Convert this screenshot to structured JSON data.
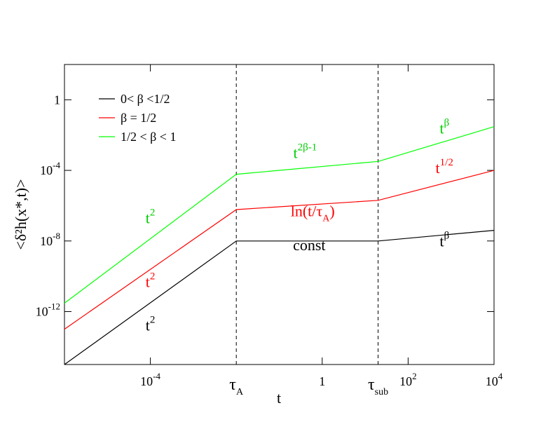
{
  "chart_data": {
    "type": "line",
    "title": "",
    "xlabel": "t",
    "ylabel": "<δ²h(x*,t)>",
    "x_scale": "log",
    "y_scale": "log",
    "xlim": [
      1e-06,
      10000.0
    ],
    "ylim": [
      1e-15,
      100.0
    ],
    "x_ticks": [
      {
        "value": 0.0001,
        "base": "10",
        "exp": "-4"
      },
      {
        "value": 1,
        "base": "1",
        "exp": ""
      },
      {
        "value": 100.0,
        "base": "10",
        "exp": "2"
      },
      {
        "value": 10000.0,
        "base": "10",
        "exp": "4"
      }
    ],
    "y_ticks": [
      {
        "value": 1e-12,
        "base": "10",
        "exp": "-12"
      },
      {
        "value": 1e-08,
        "base": "10",
        "exp": "-8"
      },
      {
        "value": 0.0001,
        "base": "10",
        "exp": "-4"
      },
      {
        "value": 1,
        "base": "1",
        "exp": ""
      }
    ],
    "vlines": [
      {
        "value": 0.01,
        "base": "τ",
        "sub": "A"
      },
      {
        "value": 20,
        "base": "τ",
        "sub": "sub"
      }
    ],
    "legend": {
      "position": "top-left"
    },
    "series": [
      {
        "name": "0< β <1/2",
        "color": "#000000",
        "x": [
          1e-06,
          0.01,
          20,
          10000.0
        ],
        "y": [
          1e-15,
          1e-08,
          1e-08,
          4e-08
        ]
      },
      {
        "name": "β = 1/2",
        "color": "#ff0000",
        "x": [
          1e-06,
          0.01,
          20,
          10000.0
        ],
        "y": [
          1e-13,
          6e-07,
          2e-06,
          0.0001
        ]
      },
      {
        "name": "1/2 < β < 1",
        "color": "#00ff00",
        "x": [
          1e-06,
          0.01,
          20,
          10000.0
        ],
        "y": [
          3e-12,
          6e-05,
          0.00032,
          0.03
        ]
      }
    ],
    "annotations": [
      {
        "text": "t",
        "sup": "2",
        "color": "#00cc00",
        "x": 0.0001,
        "y": 1e-07
      },
      {
        "text": "t",
        "sup": "2",
        "color": "#ff0000",
        "x": 0.0001,
        "y": 2.5e-11
      },
      {
        "text": "t",
        "sup": "2",
        "color": "#000000",
        "x": 0.0001,
        "y": 8.5e-14
      },
      {
        "text": "t",
        "sup": "2β-1",
        "color": "#00cc00",
        "x": 0.4,
        "y": 0.0005
      },
      {
        "text": "ln(t/τ",
        "sub": "A",
        "after": ")",
        "color": "#ff0000",
        "x": 0.6,
        "y": 2.5e-07
      },
      {
        "text": "const",
        "color": "#000000",
        "x": 0.5,
        "y": 3e-09
      },
      {
        "text": "t",
        "sup": "β",
        "color": "#00cc00",
        "x": 700,
        "y": 0.012
      },
      {
        "text": "t",
        "sup": "1/2",
        "color": "#ff0000",
        "x": 700,
        "y": 7e-05
      },
      {
        "text": "t",
        "sup": "β",
        "color": "#000000",
        "x": 700,
        "y": 5e-09
      }
    ]
  }
}
